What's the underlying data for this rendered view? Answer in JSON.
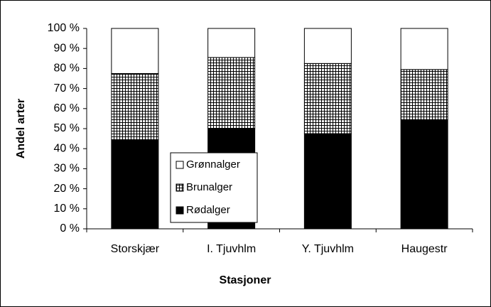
{
  "chart_data": {
    "type": "stacked_bar",
    "xlabel": "Stasjoner",
    "ylabel": "Andel arter",
    "categories": [
      "Storskjær",
      "I. Tjuvhlm",
      "Y. Tjuvhlm",
      "Haugestr"
    ],
    "series": [
      {
        "name": "Rødalger",
        "color": "#000000",
        "values": [
          44.5,
          50,
          47.5,
          54.5
        ]
      },
      {
        "name": "Brunalger",
        "color": "#ffffff",
        "pattern": "grid",
        "values": [
          33,
          35.5,
          35,
          25
        ]
      },
      {
        "name": "Grønnalger",
        "color": "#ffffff",
        "values": [
          22.5,
          14.5,
          17.5,
          20.5
        ]
      }
    ],
    "ylim": [
      0,
      100
    ],
    "yticks": [
      {
        "value": 0,
        "label": "0 %"
      },
      {
        "value": 10,
        "label": "10 %"
      },
      {
        "value": 20,
        "label": "20 %"
      },
      {
        "value": 30,
        "label": "30 %"
      },
      {
        "value": 40,
        "label": "40 %"
      },
      {
        "value": 50,
        "label": "50 %"
      },
      {
        "value": 60,
        "label": "60 %"
      },
      {
        "value": 70,
        "label": "70 %"
      },
      {
        "value": 80,
        "label": "80 %"
      },
      {
        "value": 90,
        "label": "90 %"
      },
      {
        "value": 100,
        "label": "100 %"
      }
    ],
    "grid": false,
    "legend": "lower-left"
  }
}
